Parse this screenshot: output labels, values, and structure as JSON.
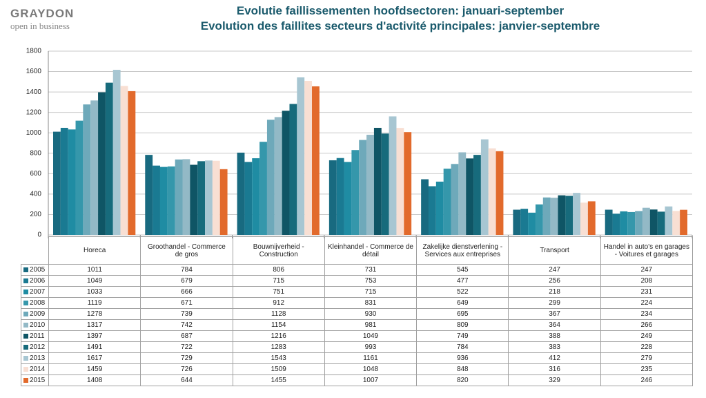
{
  "logo": {
    "name": "GRAYDON",
    "tagline": "open in business"
  },
  "chart_data": {
    "type": "bar",
    "title": "Evolutie faillissementen hoofdsectoren: januari-september",
    "subtitle": "Evolution des faillites secteurs d'activité principales: janvier-septembre",
    "categories": [
      "Horeca",
      "Groothandel - Commerce de gros",
      "Bouwnijverheid - Construction",
      "Kleinhandel - Commerce de détail",
      "Zakelijke dienstverlening - Services aux entreprises",
      "Transport",
      "Handel in auto's en garages - Voitures et garages"
    ],
    "ylim": [
      0,
      1800
    ],
    "yticks": [
      0,
      200,
      400,
      600,
      800,
      1000,
      1200,
      1400,
      1600,
      1800
    ],
    "grid": true,
    "series": [
      {
        "name": "2005",
        "color": "#186a80",
        "values": [
          1011,
          784,
          806,
          731,
          545,
          247,
          247
        ]
      },
      {
        "name": "2006",
        "color": "#1a7a92",
        "values": [
          1049,
          679,
          715,
          753,
          477,
          256,
          208
        ]
      },
      {
        "name": "2007",
        "color": "#1f8ca3",
        "values": [
          1033,
          666,
          751,
          715,
          522,
          218,
          231
        ]
      },
      {
        "name": "2008",
        "color": "#3597ab",
        "values": [
          1119,
          671,
          912,
          831,
          649,
          299,
          224
        ]
      },
      {
        "name": "2009",
        "color": "#6ea9ba",
        "values": [
          1278,
          739,
          1128,
          930,
          695,
          367,
          234
        ]
      },
      {
        "name": "2010",
        "color": "#93b9c6",
        "values": [
          1317,
          742,
          1154,
          981,
          809,
          364,
          266
        ]
      },
      {
        "name": "2011",
        "color": "#0f5565",
        "values": [
          1397,
          687,
          1216,
          1049,
          749,
          388,
          249
        ]
      },
      {
        "name": "2012",
        "color": "#176b7c",
        "values": [
          1491,
          722,
          1283,
          993,
          784,
          383,
          228
        ]
      },
      {
        "name": "2013",
        "color": "#a7c6d2",
        "values": [
          1617,
          729,
          1543,
          1161,
          936,
          412,
          279
        ]
      },
      {
        "name": "2014",
        "color": "#f8dfd3",
        "values": [
          1459,
          726,
          1509,
          1048,
          848,
          316,
          235
        ]
      },
      {
        "name": "2015",
        "color": "#e26a2c",
        "values": [
          1408,
          644,
          1455,
          1007,
          820,
          329,
          246
        ]
      }
    ]
  }
}
